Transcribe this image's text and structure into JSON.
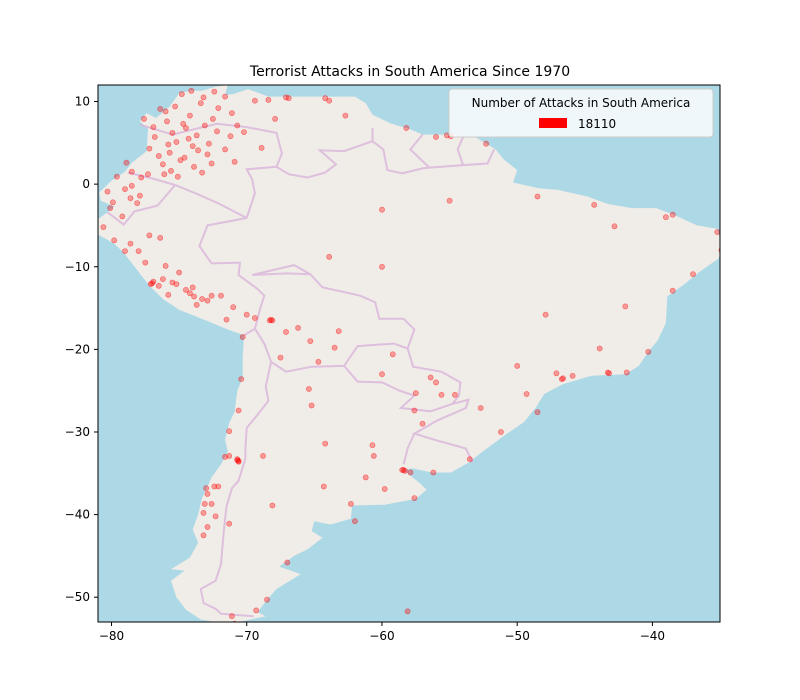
{
  "chart_data": {
    "type": "scatter",
    "title": "Terrorist Attacks in South America Since 1970",
    "xlabel": "",
    "ylabel": "",
    "xlim": [
      -81,
      -35
    ],
    "ylim": [
      -53,
      12
    ],
    "xticks": [
      -80,
      -70,
      -60,
      -50,
      -40
    ],
    "yticks": [
      10,
      0,
      -10,
      -20,
      -30,
      -40,
      -50
    ],
    "xtick_labels": [
      "−80",
      "−70",
      "−60",
      "−50",
      "−40"
    ],
    "ytick_labels": [
      "10",
      "0",
      "−10",
      "−20",
      "−30",
      "−40",
      "−50"
    ],
    "legend": {
      "title": "Number of Attacks in South America",
      "entries": [
        {
          "label": "18110",
          "color": "#ff0000"
        }
      ],
      "position": "top-right"
    },
    "colors": {
      "ocean": "#add8e6",
      "land": "#f0ede8",
      "borders": "#d9b3d9",
      "points": "#ff0000"
    },
    "grid": false,
    "series": [
      {
        "name": "18110",
        "points": [
          [
            -74,
            4.6
          ],
          [
            -75.5,
            6.2
          ],
          [
            -76.5,
            3.4
          ],
          [
            -73.1,
            7.1
          ],
          [
            -74.8,
            10.9
          ],
          [
            -72.5,
            7.9
          ],
          [
            -75.6,
            1.6
          ],
          [
            -77.3,
            1.2
          ],
          [
            -76,
            8.8
          ],
          [
            -74.2,
            8.3
          ],
          [
            -73.6,
            4.1
          ],
          [
            -75.2,
            5.1
          ],
          [
            -76.8,
            5.7
          ],
          [
            -72.2,
            6.4
          ],
          [
            -73.4,
            9.8
          ],
          [
            -74.9,
            2.9
          ],
          [
            -76.2,
            2.4
          ],
          [
            -75.9,
            7.6
          ],
          [
            -72.9,
            3.6
          ],
          [
            -74.5,
            6.8
          ],
          [
            -78.5,
            1.5
          ],
          [
            -77.8,
            0.8
          ],
          [
            -78.9,
            2.6
          ],
          [
            -77.2,
            4.3
          ],
          [
            -71.6,
            4.2
          ],
          [
            -71.2,
            5.8
          ],
          [
            -70.7,
            7.1
          ],
          [
            -73.2,
            10.5
          ],
          [
            -72.4,
            11.2
          ],
          [
            -74.1,
            11.3
          ],
          [
            -75.3,
            9.4
          ],
          [
            -76.4,
            9.1
          ],
          [
            -77.6,
            7.9
          ],
          [
            -76.9,
            6.9
          ],
          [
            -75.7,
            3.8
          ],
          [
            -74.6,
            3.2
          ],
          [
            -73.9,
            2.1
          ],
          [
            -75.1,
            0.9
          ],
          [
            -76.1,
            1.2
          ],
          [
            -74.3,
            5.5
          ],
          [
            -70.2,
            6.3
          ],
          [
            -69.4,
            10.1
          ],
          [
            -67.1,
            10.5
          ],
          [
            -66.9,
            10.4
          ],
          [
            -71.6,
            10.6
          ],
          [
            -64.2,
            10.4
          ],
          [
            -62.7,
            8.3
          ],
          [
            -63.9,
            10.1
          ],
          [
            -68.4,
            10.2
          ],
          [
            -67.9,
            7.9
          ],
          [
            -71.1,
            8.6
          ],
          [
            -72.1,
            9.2
          ],
          [
            -74.7,
            7.3
          ],
          [
            -73.7,
            5.9
          ],
          [
            -75.8,
            4.8
          ],
          [
            -72.8,
            4.9
          ],
          [
            -73.3,
            1.4
          ],
          [
            -72.6,
            2.5
          ],
          [
            -70.9,
            2.7
          ],
          [
            -68.9,
            4.4
          ],
          [
            -78.5,
            -0.2
          ],
          [
            -79.9,
            -2.2
          ],
          [
            -78.6,
            -1.7
          ],
          [
            -79.2,
            -3.9
          ],
          [
            -80.3,
            -0.9
          ],
          [
            -77.9,
            -1.4
          ],
          [
            -79.6,
            0.9
          ],
          [
            -80.1,
            -2.9
          ],
          [
            -79.0,
            -0.6
          ],
          [
            -78.1,
            -2.3
          ],
          [
            -77.0,
            -12.0
          ],
          [
            -76.9,
            -11.8
          ],
          [
            -77.1,
            -12.1
          ],
          [
            -76.5,
            -12.3
          ],
          [
            -76.2,
            -11.5
          ],
          [
            -75.2,
            -12.1
          ],
          [
            -74.2,
            -13.2
          ],
          [
            -73.9,
            -13.6
          ],
          [
            -74.5,
            -12.8
          ],
          [
            -75.5,
            -11.9
          ],
          [
            -76.0,
            -9.9
          ],
          [
            -77.5,
            -9.5
          ],
          [
            -78.0,
            -8.1
          ],
          [
            -79.0,
            -8.1
          ],
          [
            -79.8,
            -6.8
          ],
          [
            -80.6,
            -5.2
          ],
          [
            -78.6,
            -7.2
          ],
          [
            -77.2,
            -6.2
          ],
          [
            -76.4,
            -6.5
          ],
          [
            -75.0,
            -10.7
          ],
          [
            -73.7,
            -14.6
          ],
          [
            -72.6,
            -13.5
          ],
          [
            -71.9,
            -13.5
          ],
          [
            -71.5,
            -16.4
          ],
          [
            -70.0,
            -15.8
          ],
          [
            -71.0,
            -14.9
          ],
          [
            -72.9,
            -14.1
          ],
          [
            -74.0,
            -12.5
          ],
          [
            -73.3,
            -13.9
          ],
          [
            -75.8,
            -13.4
          ],
          [
            -69.4,
            -16.2
          ],
          [
            -68.1,
            -16.5
          ],
          [
            -68.2,
            -16.4
          ],
          [
            -66.2,
            -17.4
          ],
          [
            -63.2,
            -17.8
          ],
          [
            -65.3,
            -19.0
          ],
          [
            -64.7,
            -21.5
          ],
          [
            -68.3,
            -16.5
          ],
          [
            -67.1,
            -17.9
          ],
          [
            -70.3,
            -18.5
          ],
          [
            -70.4,
            -23.6
          ],
          [
            -70.6,
            -27.4
          ],
          [
            -71.3,
            -29.9
          ],
          [
            -70.7,
            -33.4
          ],
          [
            -70.6,
            -33.5
          ],
          [
            -71.6,
            -33.0
          ],
          [
            -71.3,
            -32.9
          ],
          [
            -72.4,
            -36.6
          ],
          [
            -73.0,
            -36.8
          ],
          [
            -72.6,
            -38.7
          ],
          [
            -73.2,
            -39.8
          ],
          [
            -72.9,
            -41.5
          ],
          [
            -71.3,
            -41.1
          ],
          [
            -70.6,
            -33.6
          ],
          [
            -70.7,
            -33.3
          ],
          [
            -72.1,
            -36.6
          ],
          [
            -72.9,
            -37.5
          ],
          [
            -73.1,
            -38.7
          ],
          [
            -72.3,
            -40.2
          ],
          [
            -73.2,
            -42.5
          ],
          [
            -58.4,
            -34.6
          ],
          [
            -58.5,
            -34.6
          ],
          [
            -58.3,
            -34.7
          ],
          [
            -57.9,
            -34.9
          ],
          [
            -56.2,
            -34.9
          ],
          [
            -60.6,
            -32.9
          ],
          [
            -64.2,
            -31.4
          ],
          [
            -68.8,
            -32.9
          ],
          [
            -65.4,
            -24.8
          ],
          [
            -65.2,
            -26.8
          ],
          [
            -57.6,
            -38.0
          ],
          [
            -62.3,
            -38.7
          ],
          [
            -68.1,
            -38.9
          ],
          [
            -64.3,
            -36.6
          ],
          [
            -60.7,
            -31.6
          ],
          [
            -57.5,
            -25.3
          ],
          [
            -55.6,
            -25.5
          ],
          [
            -56.4,
            -23.4
          ],
          [
            -57.6,
            -27.4
          ],
          [
            -54.6,
            -25.5
          ],
          [
            -46.6,
            -23.5
          ],
          [
            -46.7,
            -23.6
          ],
          [
            -43.2,
            -22.9
          ],
          [
            -43.3,
            -22.8
          ],
          [
            -43.9,
            -19.9
          ],
          [
            -49.3,
            -25.4
          ],
          [
            -47.9,
            -15.8
          ],
          [
            -51.2,
            -30.0
          ],
          [
            -38.5,
            -12.9
          ],
          [
            -34.9,
            -8.0
          ],
          [
            -35.2,
            -5.8
          ],
          [
            -38.5,
            -3.7
          ],
          [
            -48.5,
            -1.5
          ],
          [
            -60.0,
            -3.1
          ],
          [
            -63.9,
            -8.8
          ],
          [
            -54.9,
            5.8
          ],
          [
            -52.3,
            4.9
          ],
          [
            -58.2,
            6.8
          ],
          [
            -55.2,
            5.9
          ],
          [
            -56.0,
            5.7
          ],
          [
            -67.5,
            -21.0
          ],
          [
            -63.5,
            -19.8
          ],
          [
            -60.0,
            -23.0
          ],
          [
            -59.2,
            -20.6
          ],
          [
            -57.0,
            -29.0
          ],
          [
            -56.0,
            -24.0
          ],
          [
            -53.5,
            -33.3
          ],
          [
            -61.2,
            -35.5
          ],
          [
            -59.8,
            -36.9
          ],
          [
            -62.0,
            -40.8
          ],
          [
            -67.0,
            -45.8
          ],
          [
            -68.5,
            -50.3
          ],
          [
            -70.9,
            -53.2
          ],
          [
            -58.1,
            -51.7
          ],
          [
            -71.1,
            -52.3
          ],
          [
            -69.3,
            -51.6
          ],
          [
            -60.0,
            -10.0
          ],
          [
            -55.0,
            -2.0
          ],
          [
            -44.3,
            -2.5
          ],
          [
            -40.3,
            -20.3
          ],
          [
            -50.0,
            -22.0
          ],
          [
            -52.7,
            -27.1
          ],
          [
            -48.5,
            -27.6
          ],
          [
            -47.1,
            -22.9
          ],
          [
            -45.9,
            -23.2
          ],
          [
            -41.9,
            -22.8
          ],
          [
            -42.8,
            -5.1
          ],
          [
            -39.0,
            -4.0
          ],
          [
            -37.0,
            -10.9
          ],
          [
            -42.0,
            -14.8
          ]
        ]
      }
    ]
  }
}
